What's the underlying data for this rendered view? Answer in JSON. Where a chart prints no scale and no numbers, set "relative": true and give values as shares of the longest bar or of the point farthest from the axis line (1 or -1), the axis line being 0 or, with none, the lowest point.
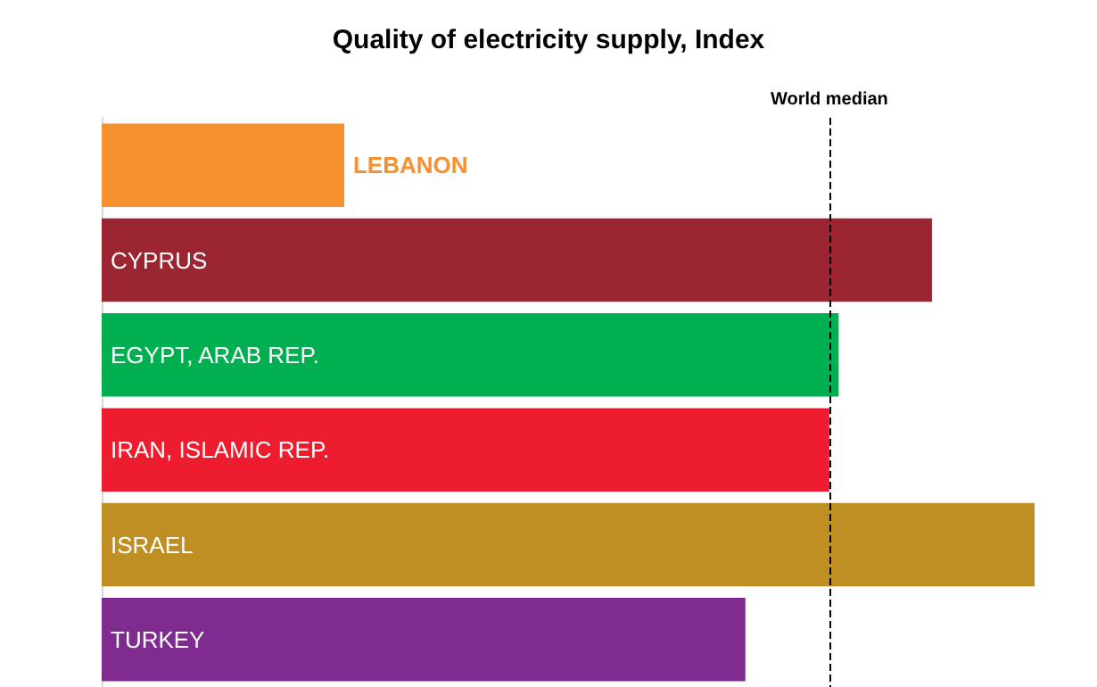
{
  "chart_data": {
    "type": "bar",
    "orientation": "horizontal",
    "relative": true,
    "title": "Quality of electricity supply, Index",
    "categories": [
      "LEBANON",
      "CYPRUS",
      "EGYPT, ARAB REP.",
      "IRAN, ISLAMIC REP.",
      "ISRAEL",
      "TURKEY"
    ],
    "values": [
      0.26,
      0.89,
      0.79,
      0.78,
      1,
      0.69
    ],
    "colors": [
      "#f7902e",
      "#9b2530",
      "#00b050",
      "#ed1c2e",
      "#bf8f24",
      "#7f2b8f"
    ],
    "ref_lines": [
      {
        "axis": "x",
        "value": 0.78,
        "label": "World median",
        "line_style": "dashed",
        "color": "#000000"
      }
    ]
  }
}
